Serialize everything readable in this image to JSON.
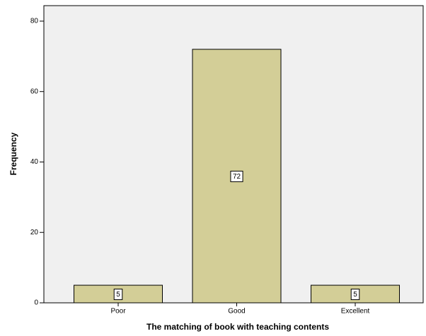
{
  "chart_data": {
    "type": "bar",
    "x_label": "The matching of book with teaching contents",
    "y_label": "Frequency",
    "categories": [
      "Poor",
      "Good",
      "Excellent"
    ],
    "values": [
      5,
      72,
      5
    ],
    "color": "#d3ce97",
    "ylim": [
      0,
      84.4
    ],
    "yticks": [
      0,
      20,
      40,
      60,
      80
    ],
    "grid": false
  }
}
